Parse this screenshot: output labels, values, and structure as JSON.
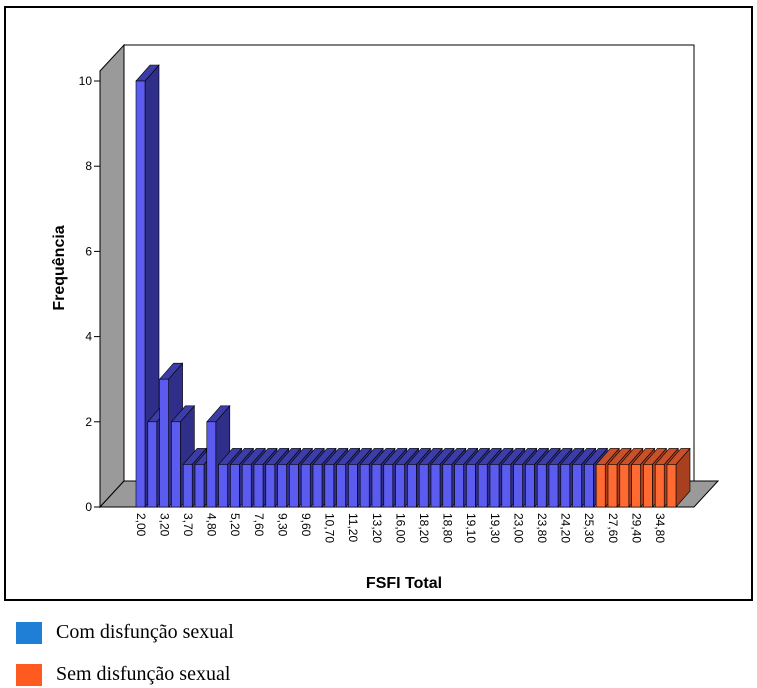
{
  "chart_data": {
    "type": "bar",
    "title": "",
    "xlabel": "FSFI Total",
    "ylabel": "Frequência",
    "ylim": [
      0,
      10
    ],
    "yticks": [
      "0",
      "2",
      "4",
      "6",
      "8",
      "10"
    ],
    "grid": false,
    "style": "3d",
    "xtick_labels": [
      "2,00",
      "3,20",
      "3,70",
      "4,80",
      "5,20",
      "7,60",
      "9,30",
      "9,60",
      "10,70",
      "11,20",
      "13,20",
      "16,00",
      "18,20",
      "18,80",
      "19,10",
      "19,30",
      "23,00",
      "23,80",
      "24,20",
      "25,30",
      "27,60",
      "29,40",
      "34,80"
    ],
    "values": [
      10,
      2,
      3,
      2,
      1,
      1,
      2,
      1,
      1,
      1,
      1,
      1,
      1,
      1,
      1,
      1,
      1,
      1,
      1,
      1,
      1,
      1,
      1,
      1,
      1,
      1,
      1,
      1,
      1,
      1,
      1,
      1,
      1,
      1,
      1,
      1,
      1,
      1,
      1,
      1,
      1,
      1,
      1,
      1,
      1,
      1
    ],
    "group_split_index": 39,
    "series": [
      {
        "name": "Com disfunção sexual",
        "color": "#1f7fd6",
        "bar_color": "#5b5bf0",
        "bar_top_color": "#3d3da8",
        "bar_side_color": "#2f2f8a"
      },
      {
        "name": "Sem disfunção sexual",
        "color": "#ff5a1f",
        "bar_color": "#ff6a33",
        "bar_top_color": "#c8502a",
        "bar_side_color": "#a8401f"
      }
    ]
  },
  "legend": {
    "com_label": "Com disfunção sexual",
    "sem_label": "Sem disfunção sexual"
  }
}
